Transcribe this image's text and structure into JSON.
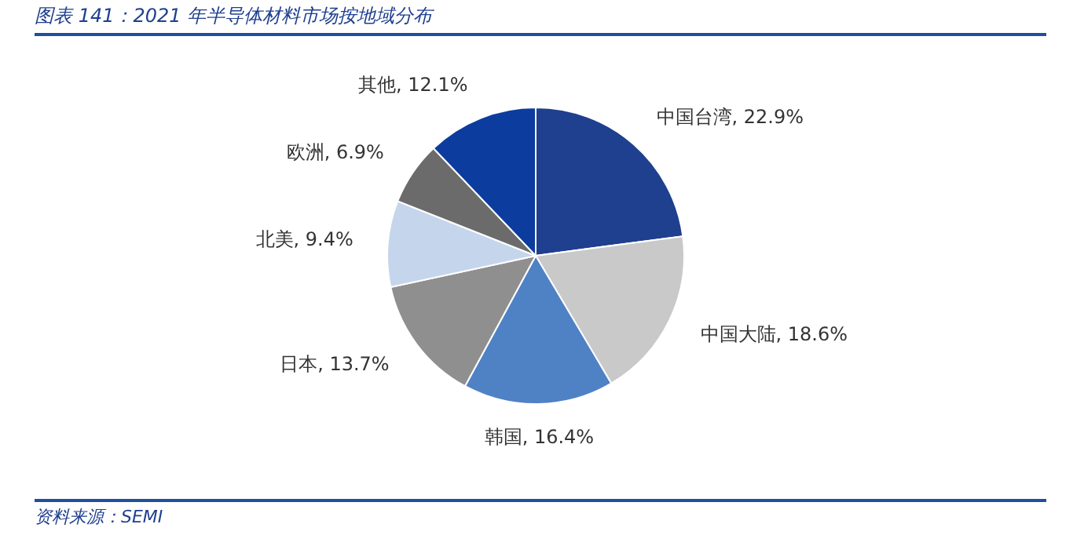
{
  "chart_data": {
    "type": "pie",
    "title": "图表 141：2021 年半导体材料市场按地域分布",
    "categories": [
      "中国台湾",
      "中国大陆",
      "韩国",
      "日本",
      "北美",
      "欧洲",
      "其他"
    ],
    "values": [
      22.9,
      18.6,
      16.4,
      13.7,
      9.4,
      6.9,
      12.1
    ],
    "value_labels": [
      "22.9%",
      "18.6%",
      "16.4%",
      "13.7%",
      "9.4%",
      "6.9%",
      "12.1%"
    ],
    "colors": [
      "#1f3f8f",
      "#c9c9c9",
      "#4f81c5",
      "#8f8f8f",
      "#c5d5ec",
      "#6b6b6b",
      "#0c3c9e"
    ],
    "annotations": [
      "资料来源：SEMI"
    ],
    "legend": false
  }
}
